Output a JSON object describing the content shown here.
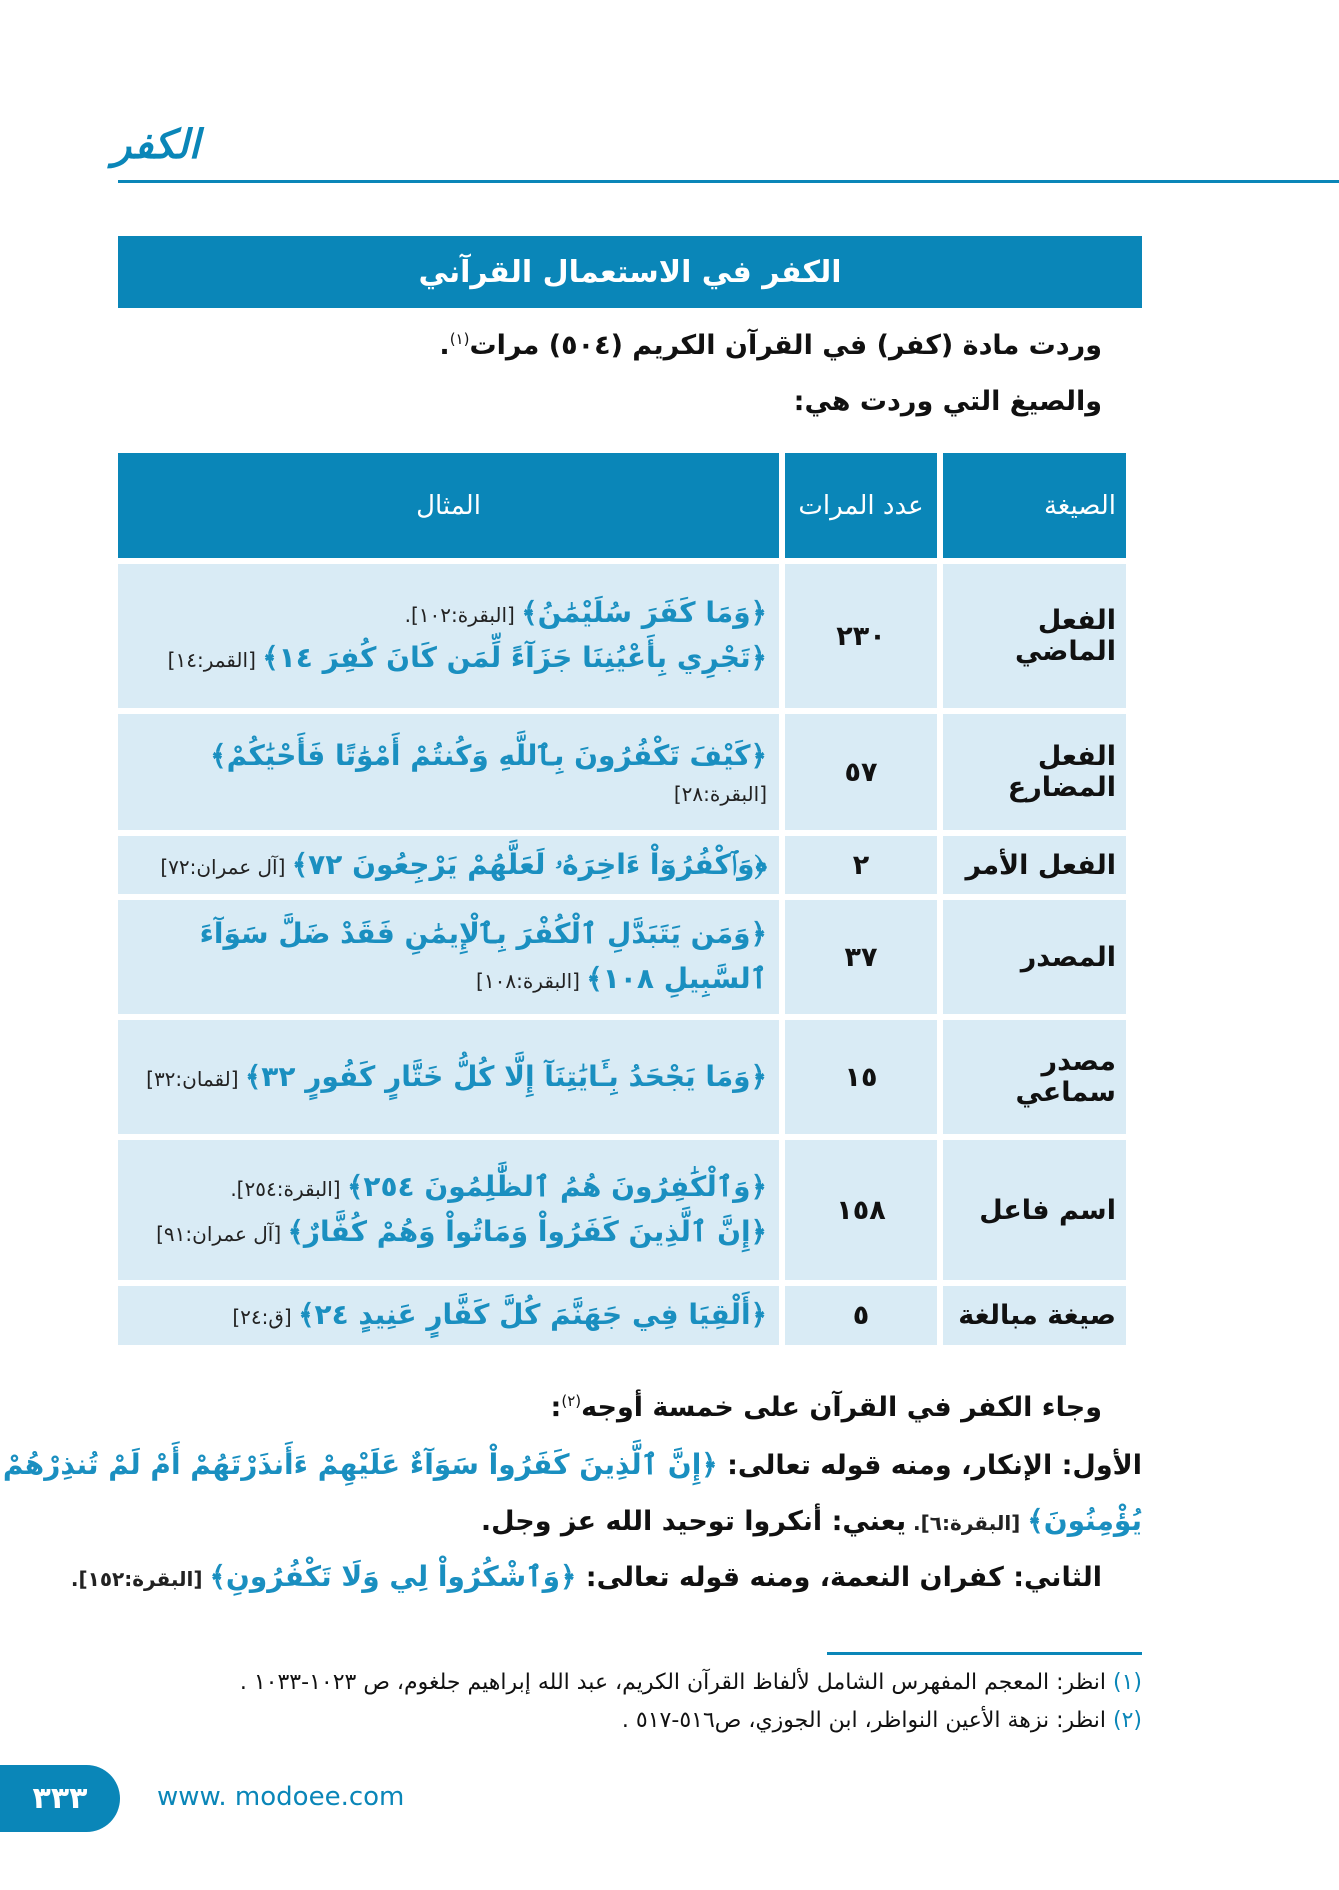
{
  "header": {
    "title": "الكفر"
  },
  "banner": {
    "title": "الكفر في الاستعمال القرآني"
  },
  "intro": {
    "line1": "وردت مادة (كفر) في القرآن الكريم (٥٠٤) مرات",
    "line1_note": "(١)",
    "line1_end": ".",
    "line2": "والصيغ التي وردت هي:"
  },
  "table": {
    "headers": {
      "form": "الصيغة",
      "count": "عدد المرات",
      "example": "المثال"
    },
    "rows": [
      {
        "form": "الفعل الماضي",
        "count": "٢٣٠",
        "examples": [
          {
            "verse": "﴿وَمَا كَفَرَ سُلَيْمَٰنُ﴾",
            "ref": "[البقرة:١٠٢]."
          },
          {
            "verse": "﴿تَجْرِي بِأَعْيُنِنَا جَزَآءً لِّمَن كَانَ كُفِرَ ١٤﴾",
            "ref": "[القمر:١٤]"
          }
        ]
      },
      {
        "form": "الفعل المضارع",
        "count": "٥٧",
        "examples": [
          {
            "verse": "﴿كَيْفَ تَكْفُرُونَ بِٱللَّهِ وَكُنتُمْ أَمْوَٰتًا فَأَحْيَٰكُمْ﴾",
            "ref": "[البقرة:٢٨]"
          }
        ]
      },
      {
        "form": "الفعل الأمر",
        "count": "٢",
        "examples": [
          {
            "verse": "﴿وَٱكْفُرُوٓاْ ءَاخِرَهُۥ لَعَلَّهُمْ يَرْجِعُونَ ٧٢﴾",
            "ref": "[آل عمران:٧٢]"
          }
        ]
      },
      {
        "form": "المصدر",
        "count": "٣٧",
        "examples": [
          {
            "verse": "﴿وَمَن يَتَبَدَّلِ ٱلْكُفْرَ بِٱلْإِيمَٰنِ فَقَدْ ضَلَّ سَوَآءَ ٱلسَّبِيلِ ١٠٨﴾",
            "ref": "[البقرة:١٠٨]"
          }
        ]
      },
      {
        "form": "مصدر سماعي",
        "count": "١٥",
        "examples": [
          {
            "verse": "﴿وَمَا يَجْحَدُ بِـَٔايَٰتِنَآ إِلَّا كُلُّ خَتَّارٍ كَفُورٍ ٣٢﴾",
            "ref": "[لقمان:٣٢]"
          }
        ]
      },
      {
        "form": "اسم فاعل",
        "count": "١٥٨",
        "examples": [
          {
            "verse": "﴿وَٱلْكَٰفِرُونَ هُمُ ٱلظَّٰلِمُونَ ٢٥٤﴾",
            "ref": "[البقرة:٢٥٤]."
          },
          {
            "verse": "﴿إِنَّ ٱلَّذِينَ كَفَرُواْ وَمَاتُواْ وَهُمْ كُفَّارٌ﴾",
            "ref": "[آل عمران:٩١]"
          }
        ]
      },
      {
        "form": "صيغة مبالغة",
        "count": "٥",
        "examples": [
          {
            "verse": "﴿أَلْقِيَا فِي جَهَنَّمَ كُلَّ كَفَّارٍ عَنِيدٍ ٢٤﴾",
            "ref": "[ق:٢٤]"
          }
        ]
      }
    ]
  },
  "body": {
    "p1": "وجاء الكفر في القرآن على خمسة أوجه",
    "p1_note": "(٢)",
    "p1_end": ":",
    "p2_label": "الأول: الإنكار، ومنه قوله تعالى: ",
    "p2_verse": "﴿إِنَّ ٱلَّذِينَ كَفَرُواْ سَوَآءٌ عَلَيْهِمْ ءَأَنذَرْتَهُمْ أَمْ لَمْ تُنذِرْهُمْ لَا",
    "p3_verse": "يُؤْمِنُونَ﴾",
    "p3_ref": " [البقرة:٦]. ",
    "p3_text": "يعني: أنكروا توحيد الله عز وجل.",
    "p4_label": "الثاني: كفران النعمة، ومنه قوله تعالى: ",
    "p4_verse": "﴿وَٱشْكُرُواْ لِي وَلَا تَكْفُرُونِ﴾",
    "p4_ref": " [البقرة:١٥٢]."
  },
  "footnotes": [
    {
      "num": "(١)",
      "text": "انظر: المعجم المفهرس الشامل لألفاظ القرآن الكريم، عبد الله إبراهيم جلغوم، ص ١٠٢٣-١٠٣٣ ."
    },
    {
      "num": "(٢)",
      "text": "انظر: نزهة الأعين النواظر، ابن الجوزي، ص٥١٦-٥١٧ ."
    }
  ],
  "footer": {
    "page_number": "٣٣٣",
    "url": "www. modoee.com"
  },
  "colors": {
    "accent": "#0a86b8",
    "cell": "#d9ebf5",
    "verse": "#1a8fc0"
  }
}
